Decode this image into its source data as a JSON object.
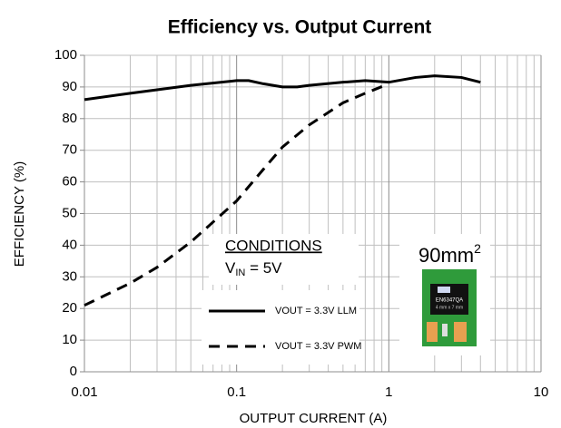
{
  "chart_data": {
    "type": "line",
    "title": "Efficiency vs. Output Current",
    "x_label": "OUTPUT CURRENT (A)",
    "y_label": "EFFICIENCY (%)",
    "x_scale": "log",
    "xlim": [
      0.01,
      10
    ],
    "xticks": [
      0.01,
      0.1,
      1,
      10
    ],
    "ylim": [
      0,
      100
    ],
    "yticks": [
      0,
      10,
      20,
      30,
      40,
      50,
      60,
      70,
      80,
      90,
      100
    ],
    "grid": true,
    "minor_grid": true,
    "series": [
      {
        "name": "VOUT = 3.3V LLM",
        "color": "#000000",
        "dash": "solid",
        "x": [
          0.01,
          0.02,
          0.05,
          0.1,
          0.12,
          0.15,
          0.2,
          0.25,
          0.3,
          0.5,
          0.7,
          1,
          1.5,
          2,
          3,
          4
        ],
        "values": [
          86,
          88,
          90.5,
          92,
          92,
          91,
          90,
          90,
          90.5,
          91.5,
          92,
          91.5,
          93,
          93.5,
          93,
          91.5
        ]
      },
      {
        "name": "VOUT = 3.3V PWM",
        "color": "#000000",
        "dash": "dashed",
        "x": [
          0.01,
          0.02,
          0.03,
          0.05,
          0.1,
          0.15,
          0.2,
          0.3,
          0.5,
          0.7,
          1
        ],
        "values": [
          21,
          28,
          33,
          41,
          54,
          64,
          71,
          78,
          85,
          88,
          91
        ]
      }
    ],
    "annotations": {
      "conditions": "CONDITIONS",
      "vin": {
        "main": "V",
        "sub": "IN",
        "rest": " = 5V"
      },
      "area": {
        "main": "90mm",
        "sup": "2"
      },
      "chip": [
        "EN6347QA",
        "4 mm x 7 mm"
      ]
    }
  }
}
